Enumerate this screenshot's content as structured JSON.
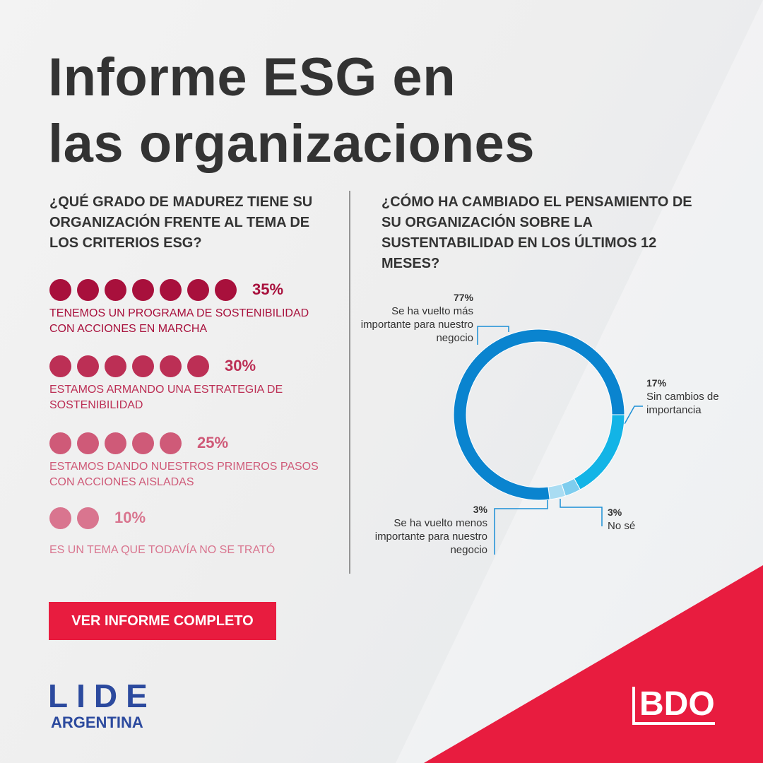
{
  "title": [
    "Informe ESG en",
    "las organizaciones"
  ],
  "chart_data": [
    {
      "type": "dot-bar",
      "title": "¿QUÉ GRADO DE MADUREZ TIENE SU ORGANIZACIÓN FRENTE AL TEMA DE LOS CRITERIOS ESG?",
      "categories": [
        "TENEMOS UN PROGRAMA DE SOSTENIBILIDAD CON ACCIONES EN MARCHA",
        "ESTAMOS ARMANDO UNA ESTRATEGIA DE SOSTENIBILIDAD",
        "ESTAMOS DANDO NUESTROS PRIMEROS PASOS CON ACCIONES AISLADAS",
        "ES UN TEMA QUE TODAVÍA NO SE TRATÓ"
      ],
      "values": [
        35,
        30,
        25,
        10
      ],
      "value_labels": [
        "35%",
        "30%",
        "25%",
        "10%"
      ],
      "colors": [
        "#a8103c",
        "#bc2f55",
        "#cf5a78",
        "#d9758f"
      ]
    },
    {
      "type": "donut",
      "title": "¿CÓMO HA CAMBIADO EL PENSAMIENTO DE SU ORGANIZACIÓN SOBRE LA SUSTENTABILIDAD EN LOS ÚLTIMOS 12 MESES?",
      "categories": [
        "Sin cambios de importancia",
        "No sé",
        "Se ha vuelto menos importante para nuestro negocio",
        "Se ha vuelto más importante para nuestro negocio"
      ],
      "values": [
        17,
        3,
        3,
        77
      ],
      "value_labels": [
        "17%",
        "3%",
        "3%",
        "77%"
      ],
      "colors": [
        "#13b4e6",
        "#7ecdee",
        "#a9dcf2",
        "#0a84cf"
      ]
    }
  ],
  "button": "VER INFORME COMPLETO",
  "logos": {
    "lide": "LIDE",
    "lide_sub": "ARGENTINA",
    "bdo": "BDO"
  }
}
